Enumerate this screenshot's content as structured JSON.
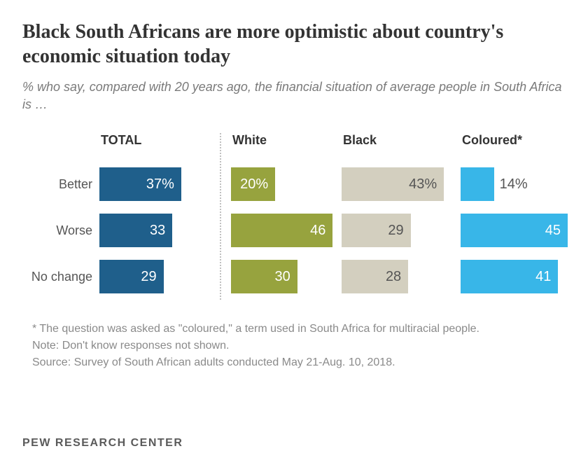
{
  "title": "Black South Africans are more optimistic about country's economic situation today",
  "subtitle": "% who say, compared with 20 years ago, the financial situation of average people in South Africa is …",
  "rows": [
    "Better",
    "Worse",
    "No change"
  ],
  "groups": {
    "total": {
      "label": "TOTAL",
      "color": "#1f5f8b",
      "text_color": "#ffffff",
      "max": 50,
      "bars": [
        {
          "value": 37,
          "display": "37%",
          "outside": false
        },
        {
          "value": 33,
          "display": "33",
          "outside": false
        },
        {
          "value": 29,
          "display": "29",
          "outside": false
        }
      ]
    },
    "white": {
      "label": "White",
      "color": "#97a33e",
      "text_color": "#ffffff",
      "max": 50,
      "bars": [
        {
          "value": 20,
          "display": "20%",
          "outside": false
        },
        {
          "value": 46,
          "display": "46",
          "outside": false
        },
        {
          "value": 30,
          "display": "30",
          "outside": false
        }
      ]
    },
    "black": {
      "label": "Black",
      "color": "#d3cfbf",
      "text_color": "#555555",
      "max": 50,
      "bars": [
        {
          "value": 43,
          "display": "43%",
          "outside": false
        },
        {
          "value": 29,
          "display": "29",
          "outside": false
        },
        {
          "value": 28,
          "display": "28",
          "outside": false
        }
      ]
    },
    "coloured": {
      "label": "Coloured*",
      "color": "#38b6e8",
      "text_color": "#ffffff",
      "max": 50,
      "bars": [
        {
          "value": 14,
          "display": "14%",
          "outside": true
        },
        {
          "value": 45,
          "display": "45",
          "outside": false
        },
        {
          "value": 41,
          "display": "41",
          "outside": false
        }
      ]
    }
  },
  "footnote_star": "*  The question was asked as \"coloured,\" a term used in South Africa for multiracial people.",
  "footnote_note": "Note: Don't know responses not shown.",
  "footnote_source": "Source: Survey of South African adults conducted May 21-Aug. 10, 2018.",
  "brand": "PEW RESEARCH CENTER"
}
